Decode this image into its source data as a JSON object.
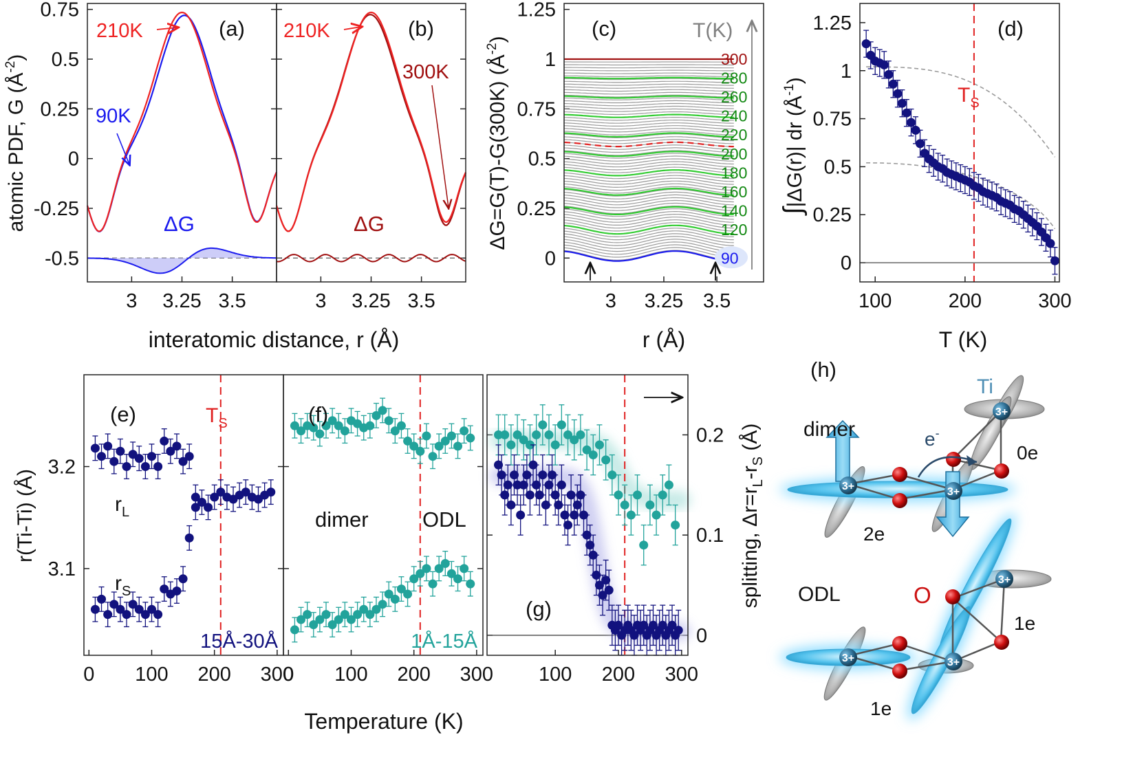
{
  "colors": {
    "red": "#ee2222",
    "darkred": "#a01010",
    "blue": "#1a1aee",
    "navy": "#12127e",
    "teal": "#22a39b",
    "green": "#33cc33",
    "gray": "#9a9a9a",
    "tgray": "#808080",
    "dash": "#e02020",
    "cyan": "#59c9ef",
    "oxygen": "#cc1111",
    "ti": "#4f8fb5",
    "greentext": "#118811",
    "black": "#111111"
  },
  "chart_data": [
    {
      "id": "a",
      "type": "line",
      "panel_label": "(a)",
      "ylabel": "atomic PDF, G (Å⁻²)",
      "ylabel_main": "atomic PDF, G (Å",
      "ylabel_sup": "-2",
      "ylabel_close": ")",
      "xlabel": "interatomic distance, r (Å)",
      "xlim": [
        2.78,
        3.72
      ],
      "ylim": [
        -0.62,
        0.78
      ],
      "yticks": [
        -0.5,
        -0.25,
        0,
        0.25,
        0.5,
        0.75
      ],
      "ytick_labels": [
        "-0.5",
        "-0.25",
        "0",
        "0.25",
        "0.5",
        "0.75"
      ],
      "xticks": [
        3,
        3.25,
        3.5
      ],
      "xtick_labels": [
        "3",
        "3.25",
        "3.5"
      ],
      "peak_center": 3.25,
      "peak_height": 0.735,
      "min_left": -0.37,
      "min_right": -0.32,
      "diff_offset": -0.5,
      "series": [
        {
          "name": "210K",
          "color": "red",
          "peak_shift": 0,
          "height_scale": 1.0
        },
        {
          "name": "90K",
          "color": "blue",
          "peak_shift": 0.012,
          "height_scale": 0.98
        }
      ],
      "annotations": [
        "210K",
        "90K",
        "ΔG"
      ]
    },
    {
      "id": "b",
      "type": "line",
      "panel_label": "(b)",
      "xlim": [
        2.78,
        3.72
      ],
      "ylim": [
        -0.62,
        0.78
      ],
      "xticks": [
        3,
        3.25,
        3.5
      ],
      "xtick_labels": [
        "3",
        "3.25",
        "3.5"
      ],
      "diff_offset": -0.5,
      "series": [
        {
          "name": "210K",
          "color": "red"
        },
        {
          "name": "300K",
          "color": "darkred"
        }
      ],
      "annotations": [
        "210K",
        "300K",
        "ΔG"
      ]
    },
    {
      "id": "c",
      "type": "line",
      "panel_label": "(c)",
      "ylabel": "ΔG=G(T)-G(300K) (Å⁻²)",
      "ylabel_main": "ΔG=G(T)-G(300K) (Å",
      "ylabel_sup": "-2",
      "ylabel_close": ")",
      "xlabel": "r (Å)",
      "xlim": [
        2.78,
        3.72
      ],
      "ylim": [
        -0.12,
        1.28
      ],
      "yticks": [
        0,
        0.25,
        0.5,
        0.75,
        1,
        1.25
      ],
      "ytick_labels": [
        "0",
        "0.25",
        "0.5",
        "0.75",
        "1",
        "1.25"
      ],
      "xticks": [
        3,
        3.25,
        3.5
      ],
      "xtick_labels": [
        "3",
        "3.25",
        "3.5"
      ],
      "temperature_axis_label": "T(K)",
      "curve_offset_per_K": 0.004762,
      "highlighted_temperatures": [
        90,
        120,
        140,
        160,
        180,
        200,
        220,
        240,
        260,
        280,
        300
      ],
      "temperature_labels": [
        "300",
        "280",
        "260",
        "240",
        "220",
        "200",
        "180",
        "160",
        "140",
        "120",
        "90"
      ],
      "dashed_temperature": 210
    },
    {
      "id": "d",
      "type": "scatter",
      "panel_label": "(d)",
      "ylabel": "∫|ΔG(r)| dr (Å⁻¹)",
      "ylabel_main": "|ΔG(r)| dr  (Å",
      "ylabel_sup": "-1",
      "ylabel_close": ")",
      "integral_sign": "∫",
      "xlabel": "T (K)",
      "xlim": [
        83,
        305
      ],
      "ylim": [
        -0.1,
        1.35
      ],
      "yticks": [
        0,
        0.25,
        0.5,
        0.75,
        1,
        1.25
      ],
      "ytick_labels": [
        "0",
        "0.25",
        "0.5",
        "0.75",
        "1",
        "1.25"
      ],
      "xticks": [
        100,
        200,
        300
      ],
      "xtick_labels": [
        "100",
        "200",
        "300"
      ],
      "ts_label": "T",
      "ts_sub": "S",
      "Ts": 210,
      "x": [
        90,
        95,
        100,
        105,
        110,
        115,
        120,
        125,
        130,
        135,
        140,
        145,
        150,
        155,
        160,
        165,
        170,
        175,
        180,
        185,
        190,
        195,
        200,
        205,
        210,
        215,
        220,
        225,
        230,
        235,
        240,
        245,
        250,
        255,
        260,
        265,
        270,
        275,
        280,
        285,
        290,
        295,
        300
      ],
      "y": [
        1.14,
        1.08,
        1.05,
        1.04,
        1.03,
        0.98,
        0.93,
        0.88,
        0.83,
        0.78,
        0.73,
        0.69,
        0.62,
        0.57,
        0.54,
        0.52,
        0.5,
        0.49,
        0.47,
        0.46,
        0.45,
        0.44,
        0.43,
        0.42,
        0.4,
        0.39,
        0.37,
        0.36,
        0.35,
        0.34,
        0.32,
        0.31,
        0.3,
        0.28,
        0.27,
        0.25,
        0.23,
        0.21,
        0.19,
        0.16,
        0.13,
        0.1,
        0.01
      ],
      "y_error": 0.07
    },
    {
      "id": "e",
      "type": "scatter",
      "panel_label": "(e)",
      "ylabel": "r(Ti-Ti) (Å)",
      "xlabel": "Temperature (K)",
      "xlim": [
        -8,
        310
      ],
      "ylim": [
        3.015,
        3.29
      ],
      "yticks": [
        3.1,
        3.2
      ],
      "ytick_labels": [
        "3.1",
        "3.2"
      ],
      "xticks": [
        0,
        100,
        200,
        300
      ],
      "xtick_labels": [
        "0",
        "100",
        "200",
        "300"
      ],
      "range_label": "15Å-30Å",
      "Ts": 210,
      "ts_label": "T",
      "ts_sub": "S",
      "rL_label": "r",
      "rL_sub": "L",
      "rS_label": "r",
      "rS_sub": "S",
      "series": [
        {
          "name": "rL",
          "x": [
            10,
            20,
            30,
            40,
            50,
            60,
            70,
            80,
            90,
            100,
            110,
            120,
            130,
            140,
            150,
            160,
            170,
            180,
            190,
            200,
            210,
            220,
            230,
            240,
            250,
            260,
            270,
            280,
            290
          ],
          "y": [
            3.218,
            3.21,
            3.22,
            3.205,
            3.215,
            3.2,
            3.212,
            3.208,
            3.2,
            3.21,
            3.2,
            3.225,
            3.215,
            3.22,
            3.205,
            3.21,
            3.17,
            3.165,
            3.16,
            3.17,
            3.175,
            3.17,
            3.168,
            3.172,
            3.175,
            3.17,
            3.168,
            3.172,
            3.175
          ]
        },
        {
          "name": "rS",
          "x": [
            10,
            20,
            30,
            40,
            50,
            60,
            70,
            80,
            90,
            100,
            110,
            120,
            130,
            140,
            150,
            160,
            170
          ],
          "y": [
            3.06,
            3.07,
            3.055,
            3.065,
            3.06,
            3.055,
            3.065,
            3.06,
            3.055,
            3.06,
            3.055,
            3.08,
            3.075,
            3.078,
            3.09,
            3.13,
            3.16
          ]
        }
      ],
      "y_error": 0.012
    },
    {
      "id": "f",
      "type": "scatter",
      "panel_label": "(f)",
      "xlim": [
        -8,
        310
      ],
      "ylim": [
        3.015,
        3.29
      ],
      "xticks": [
        0,
        100,
        200,
        300
      ],
      "xtick_labels": [
        "0",
        "100",
        "200",
        "300"
      ],
      "range_label": "1Å-15Å",
      "Ts": 210,
      "phase_labels": [
        "dimer",
        "ODL"
      ],
      "series": [
        {
          "name": "rL",
          "x": [
            10,
            20,
            30,
            40,
            50,
            60,
            70,
            80,
            90,
            100,
            110,
            120,
            130,
            140,
            150,
            160,
            170,
            180,
            190,
            200,
            210,
            220,
            230,
            240,
            250,
            260,
            270,
            280,
            290
          ],
          "y": [
            3.24,
            3.235,
            3.24,
            3.238,
            3.232,
            3.24,
            3.245,
            3.24,
            3.235,
            3.245,
            3.242,
            3.238,
            3.24,
            3.25,
            3.255,
            3.245,
            3.235,
            3.24,
            3.225,
            3.22,
            3.215,
            3.23,
            3.21,
            3.22,
            3.225,
            3.23,
            3.22,
            3.235,
            3.228
          ]
        },
        {
          "name": "rS",
          "x": [
            10,
            20,
            30,
            40,
            50,
            60,
            70,
            80,
            90,
            100,
            110,
            120,
            130,
            140,
            150,
            160,
            170,
            180,
            190,
            200,
            210,
            220,
            230,
            240,
            250,
            260,
            270,
            280,
            290
          ],
          "y": [
            3.04,
            3.05,
            3.055,
            3.045,
            3.05,
            3.055,
            3.045,
            3.05,
            3.055,
            3.05,
            3.055,
            3.06,
            3.055,
            3.06,
            3.065,
            3.075,
            3.07,
            3.08,
            3.075,
            3.09,
            3.095,
            3.1,
            3.085,
            3.1,
            3.105,
            3.095,
            3.09,
            3.1,
            3.085
          ]
        }
      ],
      "y_error": 0.012
    },
    {
      "id": "g",
      "type": "scatter",
      "panel_label": "(g)",
      "ylabel": "splitting, Δr=rL-rS (Å)",
      "ylabel_main": "splitting, Δr=r",
      "ylabel_sub1": "L",
      "ylabel_mid": "-r",
      "ylabel_sub2": "S",
      "ylabel_close": " (Å)",
      "xlim": [
        -8,
        310
      ],
      "ylim": [
        -0.02,
        0.26
      ],
      "yticks": [
        0,
        0.1,
        0.2
      ],
      "ytick_labels": [
        "0",
        "0.1",
        "0.2"
      ],
      "xticks": [
        100,
        200,
        300
      ],
      "xtick_labels": [
        "100",
        "200",
        "300"
      ],
      "Ts": 210,
      "series": [
        {
          "name": "splitting (navy)",
          "x": [
            10,
            15,
            20,
            25,
            30,
            35,
            40,
            45,
            50,
            55,
            60,
            65,
            70,
            75,
            80,
            85,
            90,
            95,
            100,
            105,
            110,
            115,
            120,
            125,
            130,
            135,
            140,
            145,
            150,
            155,
            160,
            165,
            170,
            175,
            180,
            185,
            190,
            195,
            200,
            205,
            210,
            215,
            220,
            225,
            230,
            235,
            240,
            245,
            250,
            255,
            260,
            265,
            270,
            275,
            280,
            285,
            290,
            295
          ],
          "y": [
            0.17,
            0.16,
            0.14,
            0.15,
            0.13,
            0.16,
            0.15,
            0.12,
            0.15,
            0.16,
            0.14,
            0.17,
            0.15,
            0.14,
            0.16,
            0.13,
            0.15,
            0.16,
            0.14,
            0.13,
            0.15,
            0.12,
            0.11,
            0.14,
            0.12,
            0.13,
            0.14,
            0.12,
            0.1,
            0.09,
            0.08,
            0.06,
            0.05,
            0.04,
            0.055,
            0.045,
            0.01,
            0.005,
            0.01,
            0.0,
            0.005,
            0.01,
            0.005,
            0.0,
            0.01,
            0.005,
            0.01,
            0.0,
            0.005,
            0.01,
            0.0,
            0.005,
            0.01,
            0.0,
            0.005,
            0.01,
            0.0,
            0.005
          ]
        },
        {
          "name": "splitting (teal)",
          "x": [
            10,
            20,
            30,
            40,
            50,
            60,
            70,
            80,
            90,
            100,
            110,
            120,
            130,
            140,
            150,
            160,
            170,
            180,
            190,
            200,
            210,
            220,
            230,
            240,
            250,
            260,
            270,
            280,
            290
          ],
          "y": [
            0.2,
            0.2,
            0.19,
            0.2,
            0.195,
            0.19,
            0.2,
            0.21,
            0.2,
            0.19,
            0.21,
            0.2,
            0.195,
            0.2,
            0.185,
            0.18,
            0.19,
            0.175,
            0.16,
            0.14,
            0.13,
            0.12,
            0.14,
            0.09,
            0.13,
            0.12,
            0.14,
            0.15,
            0.11
          ]
        }
      ],
      "y_error": 0.02
    }
  ],
  "schematic": {
    "panel_label": "(h)",
    "top": {
      "title": "dimer",
      "ti_label": "Ti",
      "electron_label": "e",
      "electron_sup": "-",
      "charge": "3+",
      "counts": [
        "2e",
        "0e"
      ]
    },
    "bottom": {
      "title": "ODL",
      "o_label": "O",
      "charge": "3+",
      "counts": [
        "1e",
        "1e"
      ]
    }
  }
}
